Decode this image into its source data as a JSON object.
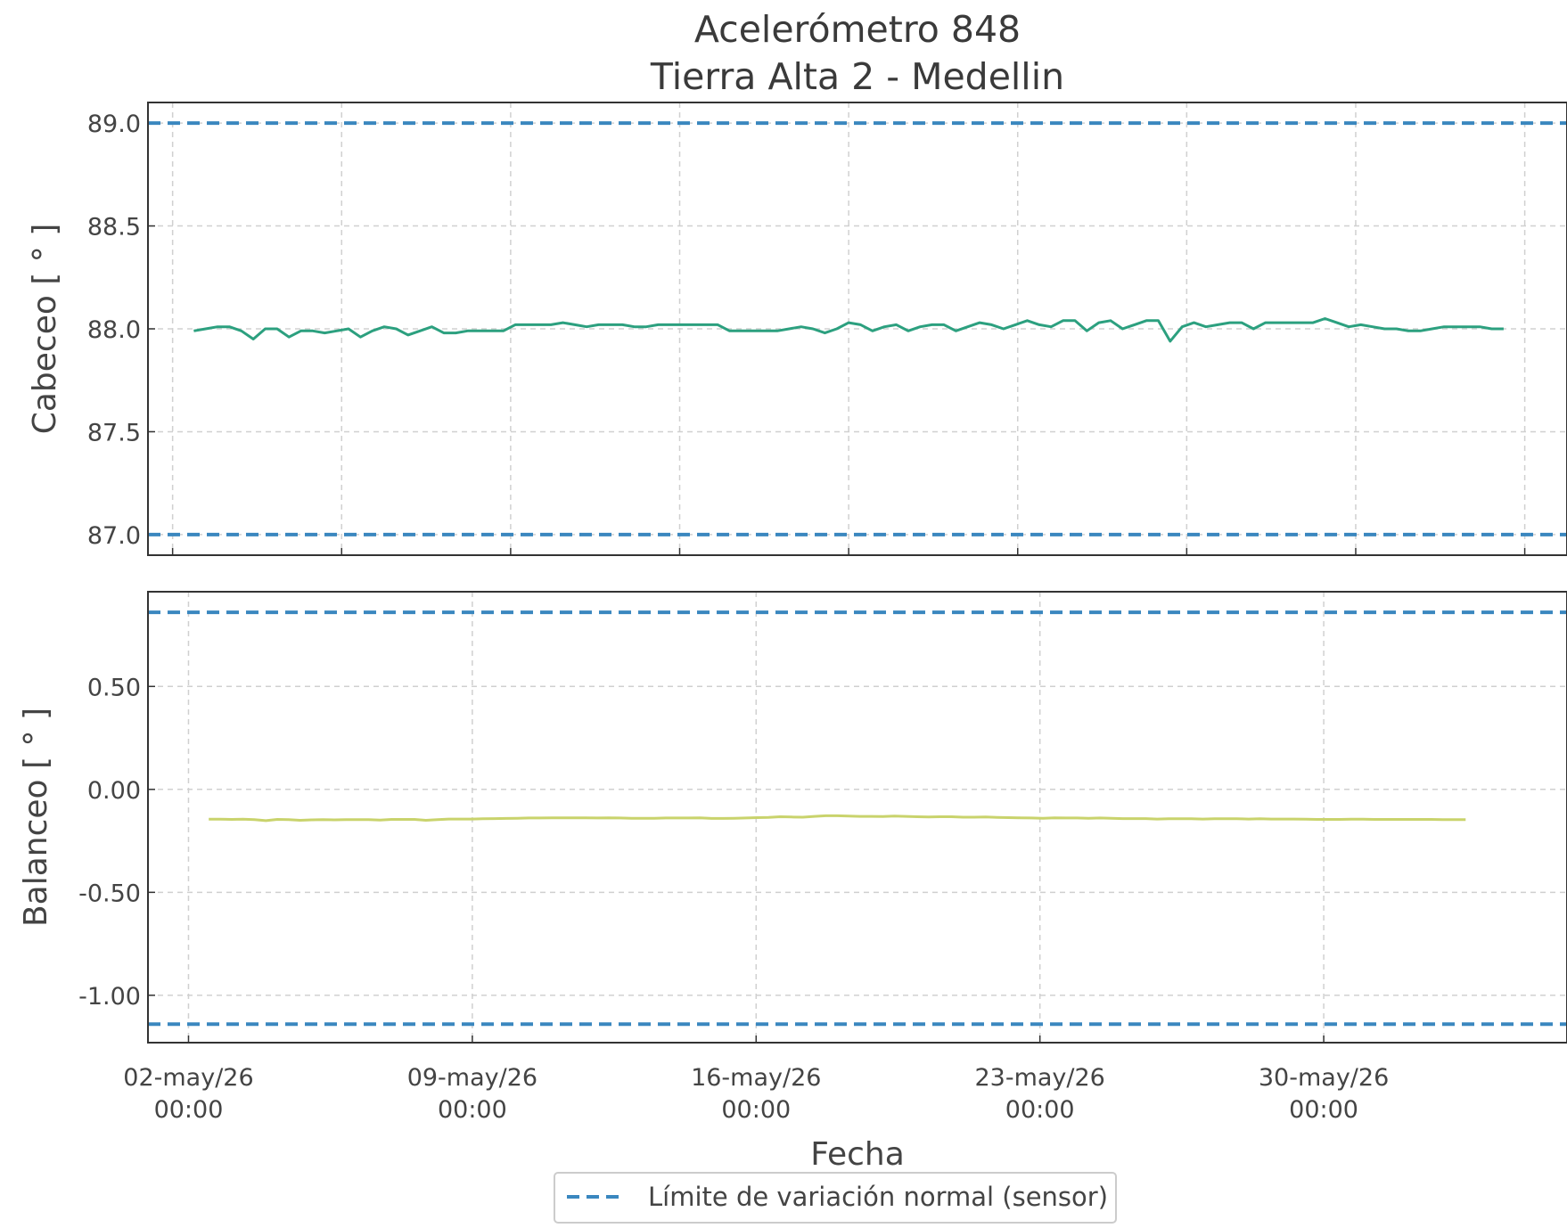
{
  "figure": {
    "title_line1": "Acelerómetro 848",
    "title_line2": "Tierra Alta 2 - Medellin",
    "xlabel": "Fecha"
  },
  "legend": {
    "entry": "Límite de variación normal (sensor)",
    "placement": "bottom-center",
    "line_color": "#3a87bf",
    "line_style": "dashed"
  },
  "chart_data": [
    {
      "type": "line",
      "ylabel": "Cabeceo [ ° ]",
      "ylim": [
        86.9,
        89.1
      ],
      "yticks": [
        87.0,
        87.5,
        88.0,
        88.5,
        89.0
      ],
      "ytick_labels": [
        "87.0",
        "87.5",
        "88.0",
        "88.5",
        "89.0"
      ],
      "xlim": [
        "2026-05-01 10:00",
        "2026-06-04 00:00"
      ],
      "xticks": [
        "2026-05-02 00:00",
        "2026-05-06 00:00",
        "2026-05-10 00:00",
        "2026-05-14 00:00",
        "2026-05-18 00:00",
        "2026-05-22 00:00",
        "2026-05-26 00:00",
        "2026-05-30 00:00",
        "2026-06-03 00:00"
      ],
      "grid": true,
      "limits": {
        "upper": 89.0,
        "lower": 87.0,
        "color": "#3a87bf"
      },
      "series": [
        {
          "color": "#2ca07f",
          "x_start": "2026-05-02 12:00",
          "x_end": "2026-06-02 12:00",
          "values": [
            87.99,
            88.0,
            88.01,
            88.01,
            87.99,
            87.95,
            88.0,
            88.0,
            87.96,
            87.99,
            87.99,
            87.98,
            87.99,
            88.0,
            87.96,
            87.99,
            88.01,
            88.0,
            87.97,
            87.99,
            88.01,
            87.98,
            87.98,
            87.99,
            87.99,
            87.99,
            87.99,
            88.02,
            88.02,
            88.02,
            88.02,
            88.03,
            88.02,
            88.01,
            88.02,
            88.02,
            88.02,
            88.01,
            88.01,
            88.02,
            88.02,
            88.02,
            88.02,
            88.02,
            88.02,
            87.99,
            87.99,
            87.99,
            87.99,
            87.99,
            88.0,
            88.01,
            88.0,
            87.98,
            88.0,
            88.03,
            88.02,
            87.99,
            88.01,
            88.02,
            87.99,
            88.01,
            88.02,
            88.02,
            87.99,
            88.01,
            88.03,
            88.02,
            88.0,
            88.02,
            88.04,
            88.02,
            88.01,
            88.04,
            88.04,
            87.99,
            88.03,
            88.04,
            88.0,
            88.02,
            88.04,
            88.04,
            87.94,
            88.01,
            88.03,
            88.01,
            88.02,
            88.03,
            88.03,
            88.0,
            88.03,
            88.03,
            88.03,
            88.03,
            88.03,
            88.05,
            88.03,
            88.01,
            88.02,
            88.01,
            88.0,
            88.0,
            87.99,
            87.99,
            88.0,
            88.01,
            88.01,
            88.01,
            88.01,
            88.0,
            88.0
          ]
        }
      ]
    },
    {
      "type": "line",
      "ylabel": "Balanceo [ ° ]",
      "ylim": [
        -1.23,
        0.96
      ],
      "yticks": [
        -1.0,
        -0.5,
        0.0,
        0.5
      ],
      "ytick_labels": [
        "-1.00",
        "-0.50",
        "0.00",
        "0.50"
      ],
      "xlim": [
        "2026-05-01 00:00",
        "2026-06-05 00:00"
      ],
      "xticks": [
        "2026-05-02 00:00",
        "2026-05-09 00:00",
        "2026-05-16 00:00",
        "2026-05-23 00:00",
        "2026-05-30 00:00"
      ],
      "xtick_labels": [
        [
          "02-may/26",
          "00:00"
        ],
        [
          "09-may/26",
          "00:00"
        ],
        [
          "16-may/26",
          "00:00"
        ],
        [
          "23-may/26",
          "00:00"
        ],
        [
          "30-may/26",
          "00:00"
        ]
      ],
      "grid": true,
      "limits": {
        "upper": 0.86,
        "lower": -1.14,
        "color": "#3a87bf"
      },
      "series": [
        {
          "color": "#c9d36c",
          "x_start": "2026-05-02 12:00",
          "x_end": "2026-06-02 12:00",
          "values": [
            -0.145,
            -0.145,
            -0.146,
            -0.145,
            -0.147,
            -0.152,
            -0.146,
            -0.147,
            -0.15,
            -0.148,
            -0.147,
            -0.148,
            -0.147,
            -0.147,
            -0.147,
            -0.149,
            -0.146,
            -0.146,
            -0.146,
            -0.15,
            -0.147,
            -0.144,
            -0.144,
            -0.144,
            -0.143,
            -0.142,
            -0.141,
            -0.14,
            -0.139,
            -0.139,
            -0.138,
            -0.138,
            -0.138,
            -0.138,
            -0.139,
            -0.138,
            -0.139,
            -0.14,
            -0.14,
            -0.14,
            -0.139,
            -0.139,
            -0.139,
            -0.138,
            -0.141,
            -0.141,
            -0.14,
            -0.139,
            -0.137,
            -0.136,
            -0.133,
            -0.134,
            -0.135,
            -0.131,
            -0.128,
            -0.128,
            -0.13,
            -0.131,
            -0.131,
            -0.132,
            -0.13,
            -0.131,
            -0.133,
            -0.134,
            -0.133,
            -0.133,
            -0.135,
            -0.135,
            -0.134,
            -0.136,
            -0.137,
            -0.138,
            -0.139,
            -0.14,
            -0.138,
            -0.139,
            -0.139,
            -0.14,
            -0.139,
            -0.14,
            -0.142,
            -0.142,
            -0.142,
            -0.144,
            -0.143,
            -0.143,
            -0.143,
            -0.144,
            -0.143,
            -0.143,
            -0.143,
            -0.144,
            -0.143,
            -0.144,
            -0.144,
            -0.144,
            -0.145,
            -0.146,
            -0.146,
            -0.146,
            -0.145,
            -0.145,
            -0.146,
            -0.146,
            -0.146,
            -0.146,
            -0.146,
            -0.146,
            -0.147,
            -0.147,
            -0.147
          ]
        }
      ]
    }
  ]
}
